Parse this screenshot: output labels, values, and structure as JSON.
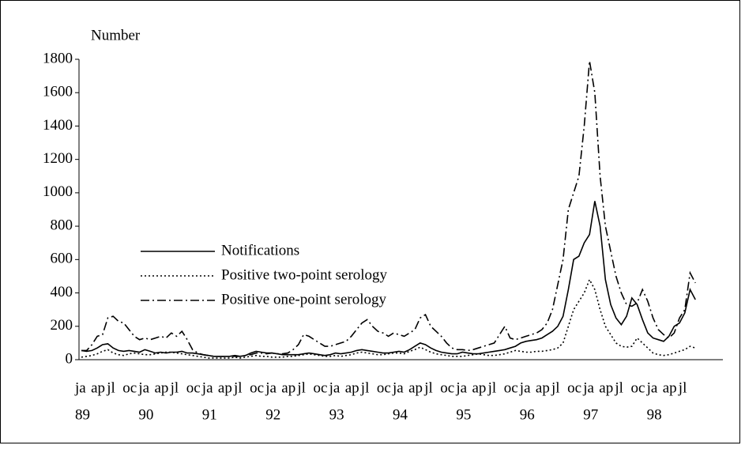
{
  "chart_data": {
    "type": "line",
    "y_label": "Number",
    "categories": [
      "ja",
      null,
      null,
      "ap",
      null,
      null,
      "jl",
      null,
      null,
      "oc",
      null,
      null,
      "ja",
      null,
      null,
      "ap",
      null,
      null,
      "jl",
      null,
      null,
      "oc",
      null,
      null,
      "ja",
      null,
      null,
      "ap",
      null,
      null,
      "jl",
      null,
      null,
      "oc",
      null,
      null,
      "ja",
      null,
      null,
      "ap",
      null,
      null,
      "jl",
      null,
      null,
      "oc",
      null,
      null,
      "ja",
      null,
      null,
      "ap",
      null,
      null,
      "jl",
      null,
      null,
      "oc",
      null,
      null,
      "ja",
      null,
      null,
      "ap",
      null,
      null,
      "jl",
      null,
      null,
      "oc",
      null,
      null,
      "ja",
      null,
      null,
      "ap",
      null,
      null,
      "jl",
      null,
      null,
      "oc",
      null,
      null,
      "ja",
      null,
      null,
      "ap",
      null,
      null,
      "jl",
      null,
      null,
      "oc",
      null,
      null,
      "ja",
      null,
      null,
      "ap",
      null,
      null,
      "jl",
      null,
      null,
      "oc",
      null,
      null,
      "ja",
      null,
      null,
      "ap",
      null,
      null,
      "jl",
      null,
      null
    ],
    "year_labels": [
      "89",
      "90",
      "91",
      "92",
      "93",
      "94",
      "95",
      "96",
      "97",
      "98"
    ],
    "ylim": [
      0,
      1800
    ],
    "yticks": [
      0,
      200,
      400,
      600,
      800,
      1000,
      1200,
      1400,
      1600,
      1800
    ],
    "series": [
      {
        "name": "Notifications",
        "color": "#000000",
        "dash": "solid",
        "values": [
          55,
          50,
          55,
          70,
          90,
          95,
          70,
          55,
          50,
          55,
          50,
          45,
          60,
          50,
          40,
          45,
          40,
          45,
          45,
          50,
          40,
          40,
          35,
          30,
          25,
          20,
          20,
          20,
          20,
          25,
          20,
          25,
          40,
          50,
          45,
          40,
          40,
          35,
          30,
          30,
          30,
          30,
          35,
          40,
          35,
          30,
          25,
          30,
          40,
          35,
          40,
          45,
          55,
          60,
          55,
          50,
          45,
          40,
          40,
          45,
          50,
          45,
          60,
          80,
          100,
          90,
          70,
          55,
          45,
          40,
          35,
          35,
          45,
          40,
          35,
          35,
          40,
          45,
          50,
          55,
          60,
          70,
          80,
          100,
          110,
          115,
          120,
          130,
          150,
          170,
          200,
          260,
          420,
          600,
          620,
          700,
          750,
          950,
          800,
          480,
          330,
          250,
          210,
          260,
          370,
          330,
          240,
          160,
          130,
          120,
          110,
          140,
          200,
          220,
          280,
          420,
          360
        ]
      },
      {
        "name": "Positive two-point serology",
        "color": "#000000",
        "dash": "dotted",
        "values": [
          15,
          20,
          25,
          35,
          50,
          60,
          40,
          30,
          25,
          35,
          40,
          35,
          30,
          30,
          35,
          40,
          45,
          45,
          40,
          35,
          30,
          25,
          20,
          15,
          10,
          10,
          10,
          10,
          10,
          15,
          10,
          15,
          20,
          25,
          20,
          20,
          15,
          15,
          15,
          20,
          20,
          25,
          30,
          35,
          30,
          25,
          20,
          20,
          25,
          20,
          25,
          30,
          40,
          45,
          40,
          35,
          30,
          30,
          35,
          40,
          40,
          35,
          50,
          60,
          75,
          60,
          45,
          35,
          30,
          25,
          20,
          20,
          20,
          25,
          30,
          35,
          30,
          25,
          25,
          30,
          35,
          45,
          55,
          50,
          45,
          45,
          50,
          50,
          55,
          60,
          70,
          100,
          200,
          300,
          350,
          400,
          480,
          420,
          300,
          200,
          150,
          100,
          80,
          75,
          80,
          130,
          100,
          70,
          40,
          30,
          25,
          30,
          40,
          50,
          60,
          80,
          70
        ]
      },
      {
        "name": "Positive one-point serology",
        "color": "#000000",
        "dash": "dashdot",
        "values": [
          55,
          55,
          90,
          140,
          150,
          250,
          260,
          230,
          220,
          180,
          140,
          120,
          130,
          120,
          130,
          140,
          130,
          160,
          140,
          170,
          120,
          60,
          40,
          30,
          25,
          20,
          20,
          20,
          20,
          20,
          20,
          25,
          30,
          40,
          40,
          35,
          40,
          35,
          35,
          40,
          60,
          90,
          150,
          140,
          120,
          100,
          80,
          80,
          90,
          100,
          110,
          140,
          180,
          220,
          240,
          200,
          170,
          160,
          140,
          160,
          150,
          140,
          160,
          180,
          250,
          270,
          200,
          170,
          140,
          100,
          70,
          60,
          60,
          55,
          60,
          70,
          80,
          90,
          100,
          150,
          200,
          130,
          120,
          130,
          140,
          150,
          160,
          180,
          220,
          300,
          450,
          600,
          900,
          1000,
          1100,
          1400,
          1790,
          1600,
          1100,
          800,
          650,
          500,
          400,
          330,
          320,
          340,
          420,
          350,
          250,
          180,
          150,
          130,
          160,
          250,
          300,
          520,
          460
        ]
      }
    ],
    "legend": "left"
  }
}
